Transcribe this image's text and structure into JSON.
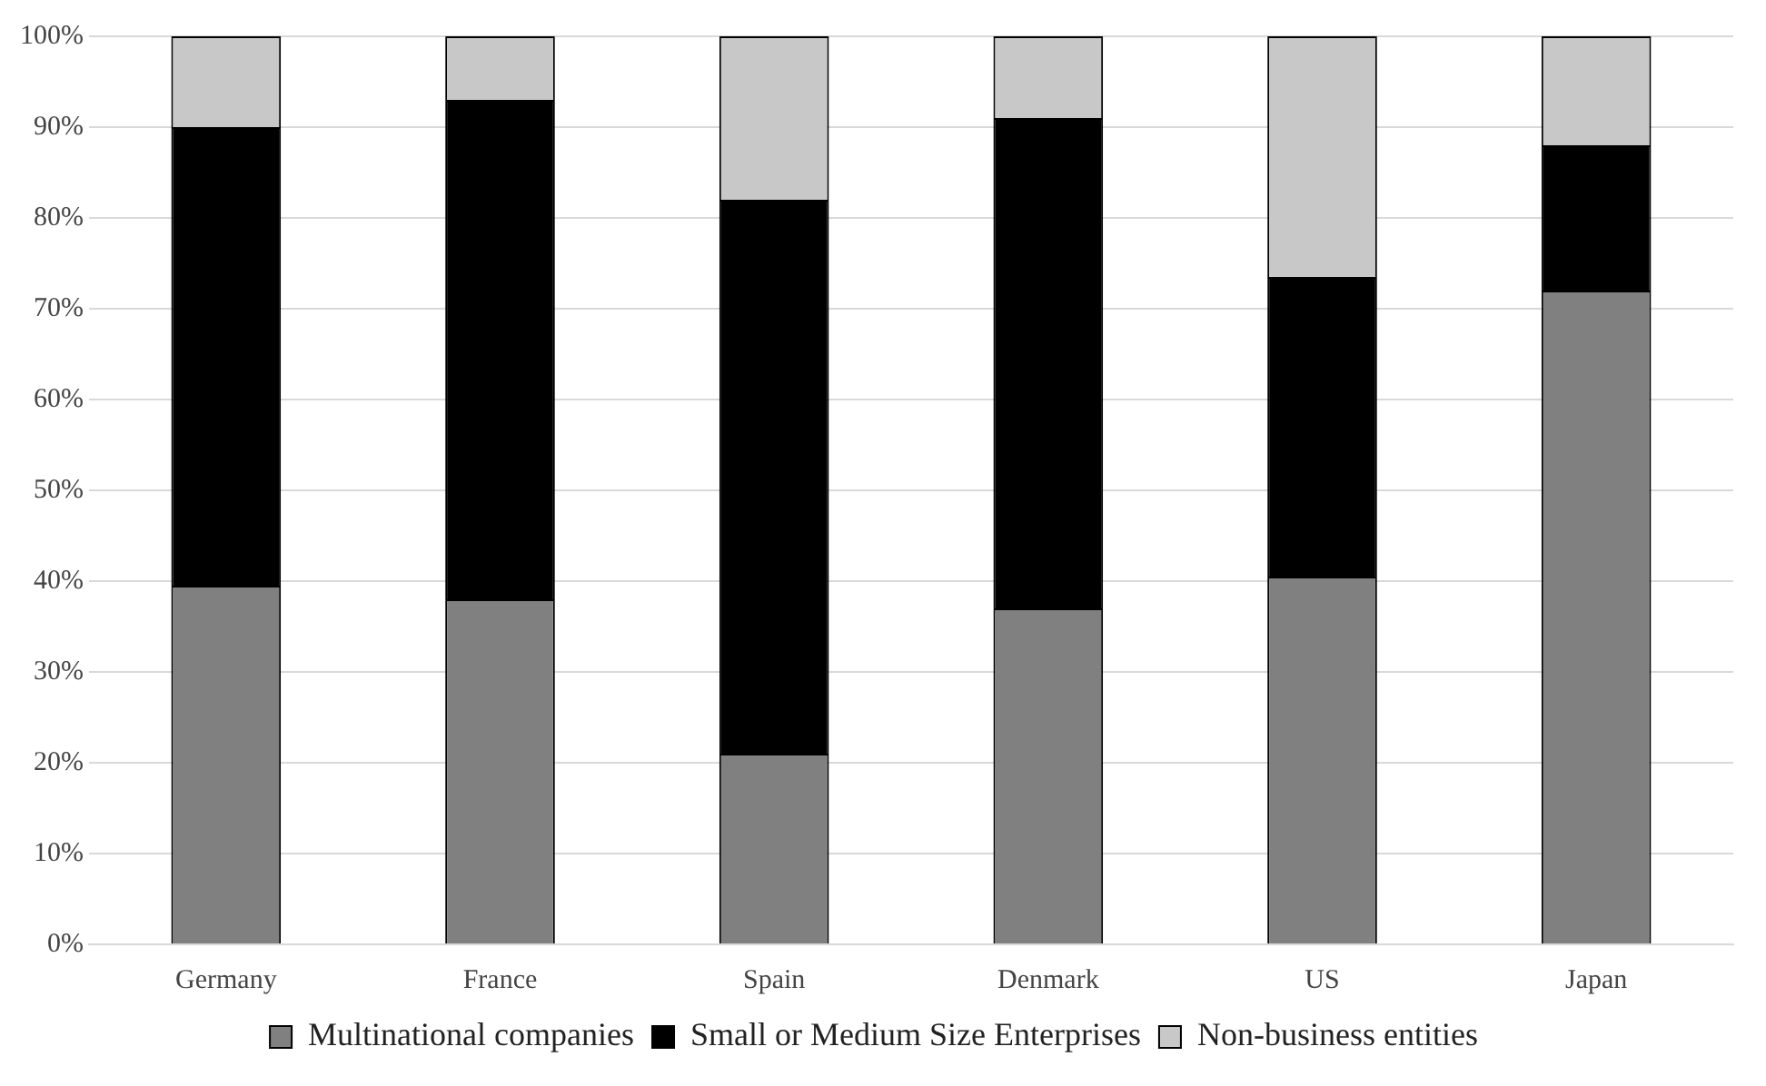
{
  "chart_data": {
    "type": "bar",
    "stacked": true,
    "categories": [
      "Germany",
      "France",
      "Spain",
      "Denmark",
      "US",
      "Japan"
    ],
    "series": [
      {
        "name": "Multinational companies",
        "color": "#808080",
        "values": [
          39.5,
          38,
          21,
          37,
          40.5,
          72
        ]
      },
      {
        "name": "Small or Medium Size Enterprises",
        "color": "#000000",
        "values": [
          50.5,
          55,
          61,
          54,
          33,
          16
        ]
      },
      {
        "name": "Non-business entities",
        "color": "#c8c8c8",
        "values": [
          10,
          7,
          18,
          9,
          26.5,
          12
        ]
      }
    ],
    "ylim": [
      0,
      100
    ],
    "yticks": [
      {
        "value": 0,
        "label": "0%"
      },
      {
        "value": 10,
        "label": "10%"
      },
      {
        "value": 20,
        "label": "20%"
      },
      {
        "value": 30,
        "label": "30%"
      },
      {
        "value": 40,
        "label": "40%"
      },
      {
        "value": 50,
        "label": "50%"
      },
      {
        "value": 60,
        "label": "60%"
      },
      {
        "value": 70,
        "label": "70%"
      },
      {
        "value": 80,
        "label": "80%"
      },
      {
        "value": 90,
        "label": "90%"
      },
      {
        "value": 100,
        "label": "100%"
      }
    ],
    "grid": "y",
    "legend": "bottom"
  }
}
